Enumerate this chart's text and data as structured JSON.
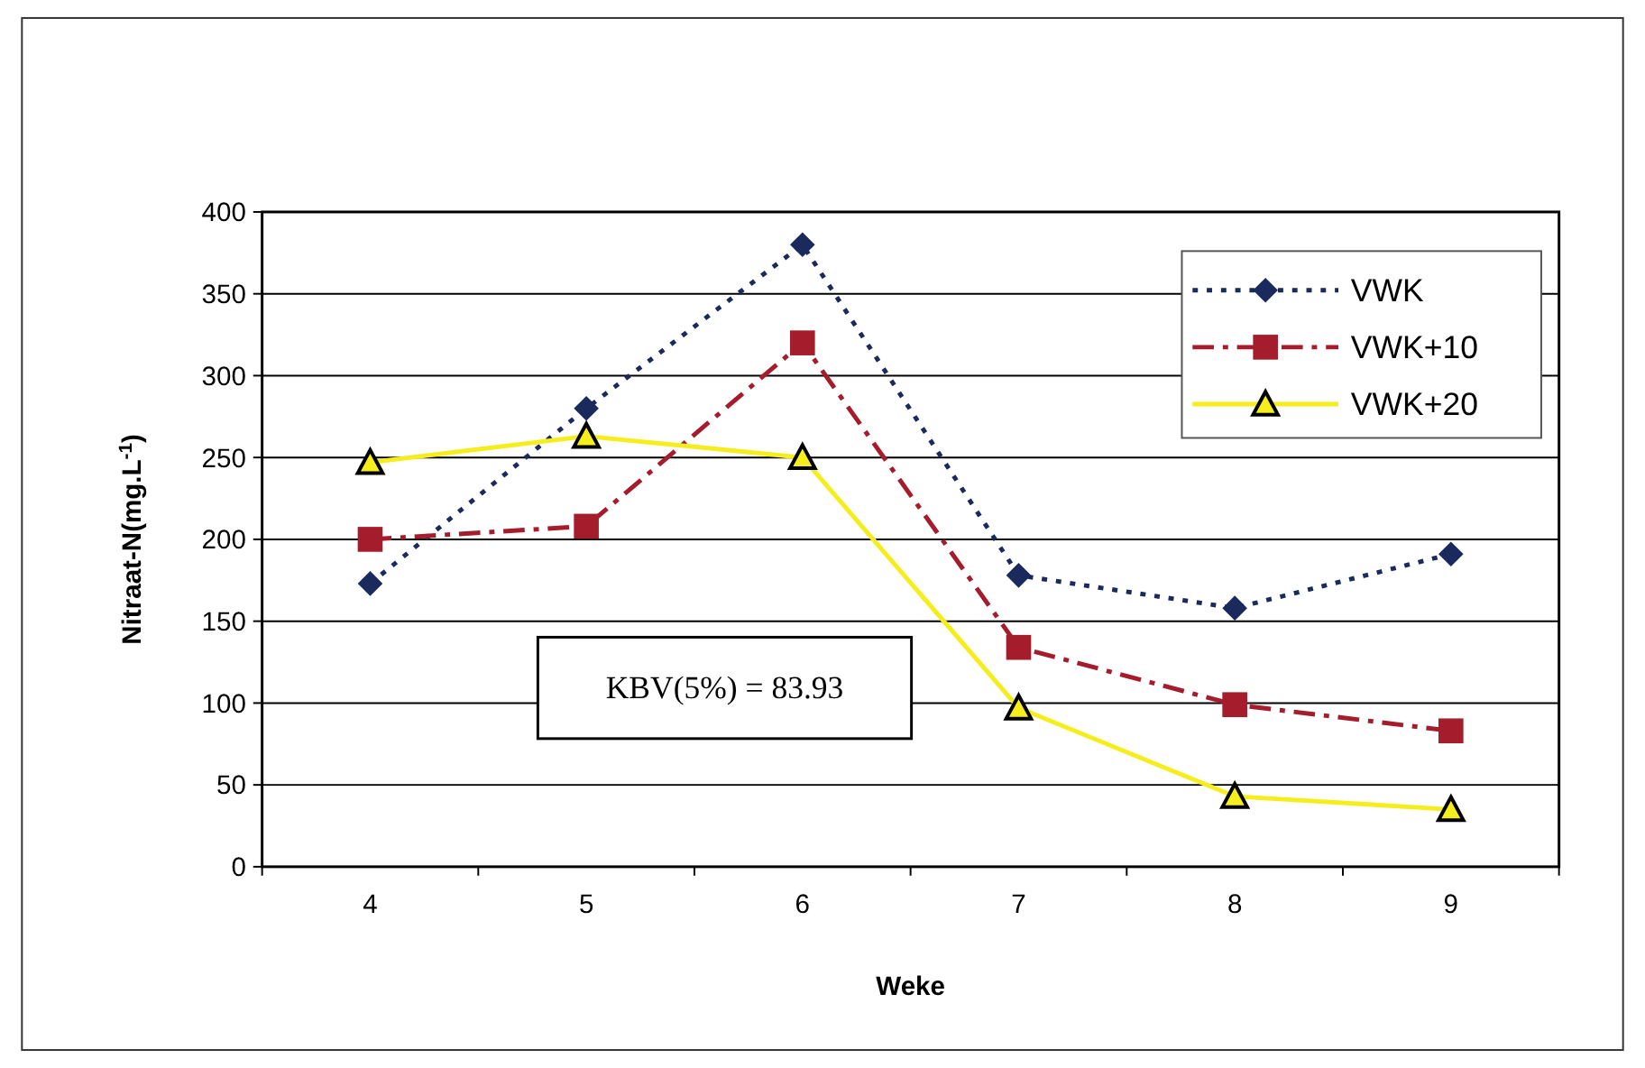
{
  "chart_data": {
    "type": "line",
    "xlabel": "Weke",
    "ylabel": "Nitraat-N(mg.L$^{-1}$)",
    "categories": [
      "4",
      "5",
      "6",
      "7",
      "8",
      "9"
    ],
    "series": [
      {
        "name": "VWK",
        "color": "#1a2a5c",
        "values": [
          173,
          280,
          380,
          178,
          158,
          191
        ],
        "marker": "diamond",
        "line_style": "dotted"
      },
      {
        "name": "VWK+10",
        "color": "#a51d2d",
        "values": [
          200,
          208,
          320,
          134,
          99,
          83
        ],
        "marker": "square",
        "line_style": "dashed"
      },
      {
        "name": "VWK+20",
        "color": "#f5ee1c",
        "values": [
          247,
          263,
          250,
          97,
          43,
          35
        ],
        "marker": "triangle",
        "line_style": "solid"
      }
    ],
    "ylim": [
      0,
      400
    ],
    "yticks": [
      0,
      50,
      100,
      150,
      200,
      250,
      300,
      350,
      400
    ],
    "grid": "y",
    "legend": "top right",
    "annotations": [
      "KBV(5%) = 83.93"
    ]
  }
}
